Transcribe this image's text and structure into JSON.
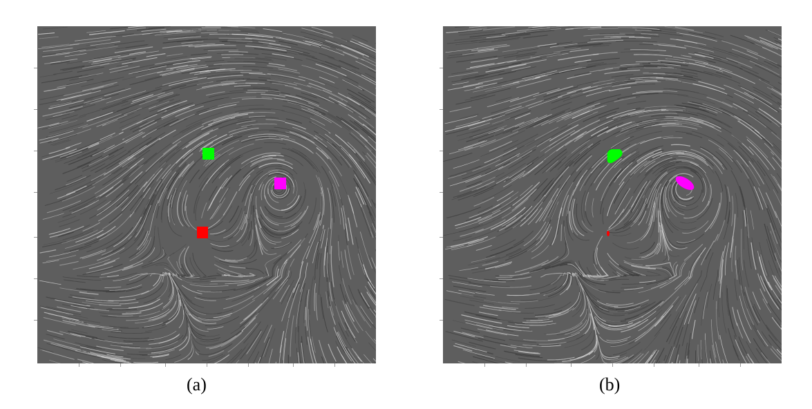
{
  "panels": [
    {
      "caption": "(a)",
      "markers": [
        {
          "color": "#00ff00",
          "shape": "square"
        },
        {
          "color": "#ff00ff",
          "shape": "square"
        },
        {
          "color": "#ff0000",
          "shape": "square"
        }
      ]
    },
    {
      "caption": "(b)",
      "markers": [
        {
          "color": "#00ff00",
          "shape": "blob"
        },
        {
          "color": "#ff00ff",
          "shape": "blob"
        },
        {
          "color": "#ff0000",
          "shape": "blob"
        }
      ]
    }
  ],
  "colors": {
    "background": "#5e5e5e",
    "streak": "#d8d8d8"
  }
}
